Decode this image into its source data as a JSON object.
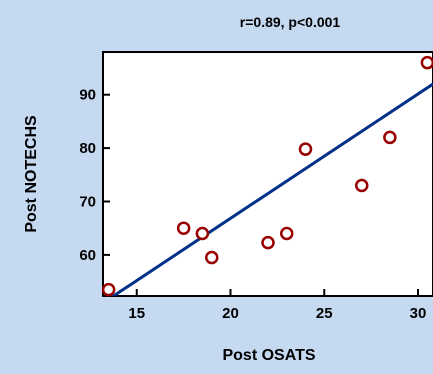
{
  "chart_data": {
    "type": "scatter",
    "title": "r=0.89, p<0.001",
    "xlabel": "Post OSATS",
    "ylabel": "Post NOTECHS",
    "xlim": [
      13.2,
      30.8
    ],
    "ylim": [
      52.3,
      98
    ],
    "xticks": [
      15,
      20,
      25,
      30
    ],
    "yticks": [
      60,
      70,
      80,
      90
    ],
    "grid": false,
    "points": [
      {
        "x": 13.5,
        "y": 53.5
      },
      {
        "x": 17.5,
        "y": 65.0
      },
      {
        "x": 18.5,
        "y": 64.0
      },
      {
        "x": 19.0,
        "y": 59.5
      },
      {
        "x": 22.0,
        "y": 62.3
      },
      {
        "x": 23.0,
        "y": 64.0
      },
      {
        "x": 24.0,
        "y": 79.8
      },
      {
        "x": 27.0,
        "y": 73.0
      },
      {
        "x": 28.5,
        "y": 82.0
      },
      {
        "x": 30.5,
        "y": 96.0
      }
    ],
    "regression": {
      "x": [
        13.5,
        30.8
      ],
      "y": [
        51.7,
        92.0
      ]
    },
    "colors": {
      "background": "#c5d9f1",
      "plot_area": "#ffffff",
      "marker": "#990000",
      "line": "#003087"
    }
  }
}
